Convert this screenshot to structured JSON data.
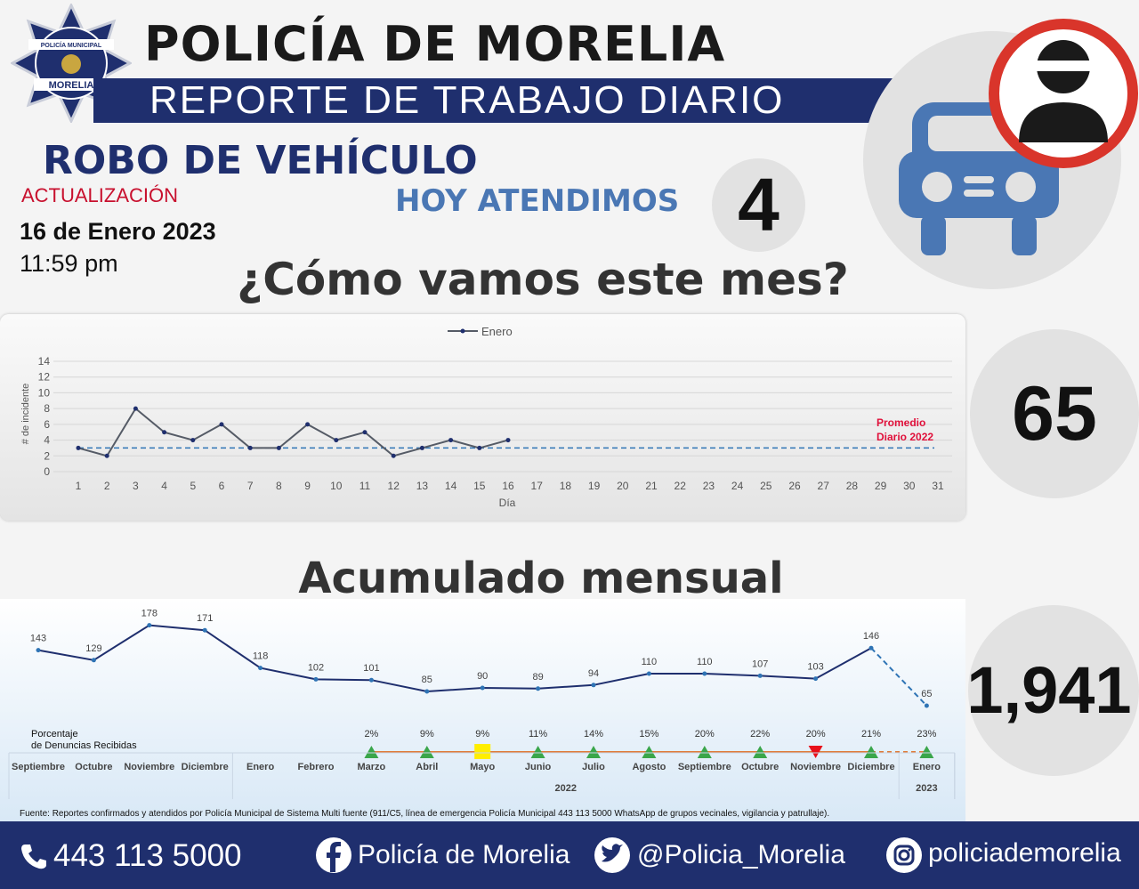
{
  "header": {
    "badge_top": "POLICÍA MUNICIPAL",
    "badge_bottom": "MORELIA",
    "title": "POLICÍA DE MORELIA",
    "subtitle": "REPORTE DE TRABAJO DIARIO"
  },
  "report": {
    "topic": "ROBO DE VEHÍCULO",
    "update_label": "ACTUALIZACIÓN",
    "date": "16 de Enero 2023",
    "time": "11:59 pm",
    "today_label": "HOY ATENDIMOS",
    "today_count": "4",
    "month_heading": "¿Cómo vamos este mes?",
    "month_total": "65",
    "cumulative_heading": "Acumulado mensual",
    "cumulative_total": "1,941"
  },
  "chart_data": [
    {
      "type": "line",
      "ylabel": "# de incidente",
      "xlabel": "Día",
      "categories": [
        "1",
        "2",
        "3",
        "4",
        "5",
        "6",
        "7",
        "8",
        "9",
        "10",
        "11",
        "12",
        "13",
        "14",
        "15",
        "16",
        "17",
        "18",
        "19",
        "20",
        "21",
        "22",
        "23",
        "24",
        "25",
        "26",
        "27",
        "28",
        "29",
        "30",
        "31"
      ],
      "series": [
        {
          "name": "Enero",
          "color": "#555b66",
          "marker_color": "#1f2f6e",
          "values": [
            3,
            2,
            8,
            5,
            4,
            6,
            3,
            3,
            6,
            4,
            5,
            2,
            3,
            4,
            3,
            4,
            null,
            null,
            null,
            null,
            null,
            null,
            null,
            null,
            null,
            null,
            null,
            null,
            null,
            null,
            null
          ]
        }
      ],
      "reference_line": {
        "value": 3,
        "label": [
          "Promedio",
          "Diario 2022"
        ],
        "color": "#2f74b5",
        "label_color": "#e0103a"
      },
      "ylim": [
        0,
        14
      ],
      "yticks": [
        0,
        2,
        4,
        6,
        8,
        10,
        12,
        14
      ],
      "grid": true,
      "legend": "top"
    },
    {
      "type": "line",
      "categories": [
        "Septiembre",
        "Octubre",
        "Noviembre",
        "Diciembre",
        "Enero",
        "Febrero",
        "Marzo",
        "Abril",
        "Mayo",
        "Junio",
        "Julio",
        "Agosto",
        "Septiembre",
        "Octubre",
        "Noviembre",
        "Diciembre",
        "Enero"
      ],
      "year_groups": [
        {
          "label": "2022",
          "from": 4,
          "to": 15
        },
        {
          "label": "2023",
          "from": 16,
          "to": 16
        }
      ],
      "series": [
        {
          "name": "Acumulado mensual",
          "color": "#1f2f6e",
          "values": [
            143,
            129,
            178,
            171,
            118,
            102,
            101,
            85,
            90,
            89,
            94,
            110,
            110,
            107,
            103,
            146,
            65
          ]
        },
        {
          "name": "Porcentaje de Denuncias Recibidas",
          "color": "#e07b39",
          "values": [
            null,
            null,
            null,
            null,
            null,
            null,
            2,
            9,
            9,
            11,
            14,
            15,
            20,
            22,
            20,
            21,
            23
          ],
          "value_labels": [
            null,
            null,
            null,
            null,
            null,
            null,
            "2%",
            "9%",
            "9%",
            "11%",
            "14%",
            "15%",
            "20%",
            "22%",
            "20%",
            "21%",
            "23%"
          ],
          "markers": [
            null,
            null,
            null,
            null,
            null,
            null,
            "up",
            "up",
            "square",
            "up",
            "up",
            "up",
            "up",
            "up",
            "down",
            "up",
            "up"
          ],
          "marker_colors": {
            "up": "#3aa64a",
            "square": "#ffee00",
            "down": "#e8101a"
          }
        }
      ]
    }
  ],
  "source": "Fuente: Reportes confirmados y atendidos por Policía Municipal de Sistema Multi fuente (911/C5, línea de emergencia Policía Municipal 443 113 5000 WhatsApp de grupos vecinales, vigilancia y patrullaje).",
  "footer": {
    "phone": "443 113 5000",
    "facebook": "Policía de Morelia",
    "twitter": "@Policia_Morelia",
    "instagram": "policiademorelia"
  }
}
